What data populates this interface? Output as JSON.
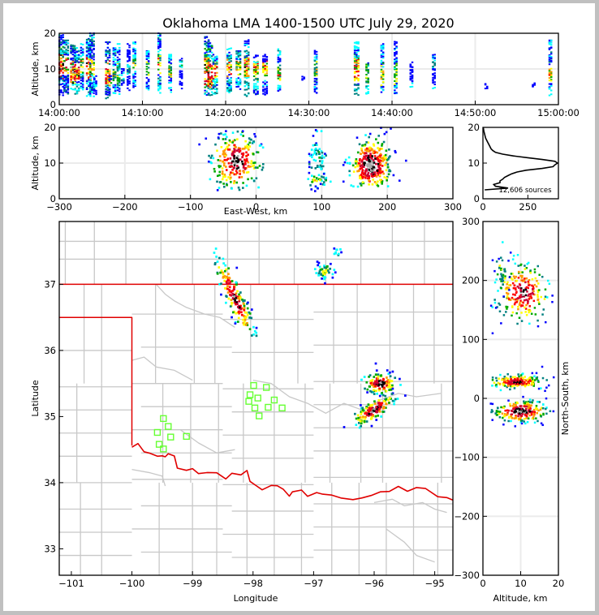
{
  "figure": {
    "title": "Oklahoma LMA 1400-1500 UTC July 29, 2020",
    "source_count_label": "12,606 sources"
  },
  "colors": {
    "county_lines": "#c8c8c8",
    "state_border": "#e00000",
    "station_marker": "#66ff33",
    "grid": "#ebebeb",
    "density_scale": [
      "#0000ff",
      "#00ffff",
      "#008080",
      "#00aa00",
      "#ffff00",
      "#ff9900",
      "#ff0000",
      "#cc0033",
      "#000000",
      "#aaaaaa"
    ]
  },
  "chart_data": [
    {
      "id": "time-height",
      "type": "heatmap",
      "title": "",
      "xlabel": "",
      "ylabel": "Altitude, km",
      "xlim": [
        "14:00:00",
        "15:00:00"
      ],
      "xlim_min": [
        0,
        60
      ],
      "ylim": [
        0,
        20
      ],
      "xticks": [
        "14:00:00",
        "14:10:00",
        "14:20:00",
        "14:30:00",
        "14:40:00",
        "14:50:00",
        "15:00:00"
      ],
      "xtick_minutes": [
        0,
        10,
        20,
        30,
        40,
        50,
        60
      ],
      "yticks": [
        0,
        10,
        20
      ],
      "grid": true,
      "columns": [
        {
          "t": 0.1,
          "zmin": 3,
          "zmax": 19.5,
          "core": [
            8,
            14
          ],
          "intensity": 0.9
        },
        {
          "t": 0.7,
          "zmin": 3,
          "zmax": 18,
          "core": [
            8,
            13
          ],
          "intensity": 0.85
        },
        {
          "t": 1.5,
          "zmin": 3,
          "zmax": 17,
          "core": [
            6,
            12
          ],
          "intensity": 0.9
        },
        {
          "t": 2.0,
          "zmin": 3,
          "zmax": 16,
          "core": [
            7,
            12
          ],
          "intensity": 0.9
        },
        {
          "t": 2.7,
          "zmin": 4,
          "zmax": 17,
          "core": [
            8,
            13
          ],
          "intensity": 0.6
        },
        {
          "t": 3.4,
          "zmin": 3,
          "zmax": 19,
          "core": [
            7,
            13
          ],
          "intensity": 0.85
        },
        {
          "t": 3.8,
          "zmin": 3,
          "zmax": 20,
          "core": [
            8,
            12
          ],
          "intensity": 0.8
        },
        {
          "t": 4.3,
          "zmin": 3,
          "zmax": 8,
          "core": [
            4,
            6
          ],
          "intensity": 0.3
        },
        {
          "t": 5.7,
          "zmin": 2,
          "zmax": 17.5,
          "core": [
            6,
            12
          ],
          "intensity": 0.8
        },
        {
          "t": 6.1,
          "zmin": 6,
          "zmax": 8,
          "core": [
            6,
            7
          ],
          "intensity": 0.5
        },
        {
          "t": 6.6,
          "zmin": 3,
          "zmax": 16,
          "core": [
            6,
            10
          ],
          "intensity": 0.6
        },
        {
          "t": 7.1,
          "zmin": 3,
          "zmax": 17,
          "core": [
            6,
            12
          ],
          "intensity": 0.4
        },
        {
          "t": 7.6,
          "zmin": 6,
          "zmax": 10,
          "core": [
            7,
            9
          ],
          "intensity": 0.25
        },
        {
          "t": 8.3,
          "zmin": 4,
          "zmax": 17,
          "core": [
            9,
            12
          ],
          "intensity": 0.3
        },
        {
          "t": 9.0,
          "zmin": 5,
          "zmax": 18,
          "core": [
            10,
            13
          ],
          "intensity": 0.5
        },
        {
          "t": 10.6,
          "zmin": 4,
          "zmax": 15,
          "core": [
            8,
            12
          ],
          "intensity": 0.5
        },
        {
          "t": 12.0,
          "zmin": 3,
          "zmax": 20,
          "core": [
            8,
            14
          ],
          "intensity": 0.6
        },
        {
          "t": 13.3,
          "zmin": 3,
          "zmax": 14,
          "core": [
            8,
            12
          ],
          "intensity": 0.55
        },
        {
          "t": 14.6,
          "zmin": 5,
          "zmax": 13,
          "core": [
            10,
            12
          ],
          "intensity": 0.3
        },
        {
          "t": 17.6,
          "zmin": 3,
          "zmax": 19,
          "core": [
            6,
            13
          ],
          "intensity": 0.95
        },
        {
          "t": 18.0,
          "zmin": 3,
          "zmax": 18,
          "core": [
            5,
            12
          ],
          "intensity": 0.9
        },
        {
          "t": 18.6,
          "zmin": 3,
          "zmax": 14,
          "core": [
            7,
            12
          ],
          "intensity": 0.7
        },
        {
          "t": 20.3,
          "zmin": 3,
          "zmax": 16,
          "core": [
            8,
            12
          ],
          "intensity": 0.75
        },
        {
          "t": 21.4,
          "zmin": 3,
          "zmax": 15,
          "core": [
            7,
            12
          ],
          "intensity": 0.75
        },
        {
          "t": 22.4,
          "zmin": 3,
          "zmax": 18.5,
          "core": [
            7,
            13
          ],
          "intensity": 0.85
        },
        {
          "t": 23.5,
          "zmin": 3,
          "zmax": 14,
          "core": [
            7,
            12
          ],
          "intensity": 0.7
        },
        {
          "t": 24.6,
          "zmin": 3,
          "zmax": 14,
          "core": [
            7,
            12
          ],
          "intensity": 0.7
        },
        {
          "t": 26.4,
          "zmin": 3,
          "zmax": 16,
          "core": [
            6,
            11
          ],
          "intensity": 0.6
        },
        {
          "t": 29.3,
          "zmin": 7,
          "zmax": 8,
          "core": [
            7,
            8
          ],
          "intensity": 0.1
        },
        {
          "t": 30.8,
          "zmin": 3,
          "zmax": 16,
          "core": [
            7,
            12
          ],
          "intensity": 0.55
        },
        {
          "t": 35.6,
          "zmin": 3,
          "zmax": 17.5,
          "core": [
            6,
            13
          ],
          "intensity": 0.75
        },
        {
          "t": 37.0,
          "zmin": 3,
          "zmax": 12.5,
          "core": [
            5,
            11
          ],
          "intensity": 0.55
        },
        {
          "t": 38.8,
          "zmin": 3,
          "zmax": 17,
          "core": [
            5,
            11
          ],
          "intensity": 0.6
        },
        {
          "t": 40.4,
          "zmin": 3,
          "zmax": 18,
          "core": [
            6,
            11
          ],
          "intensity": 0.5
        },
        {
          "t": 42.3,
          "zmin": 5,
          "zmax": 12.5,
          "core": [
            5,
            6
          ],
          "intensity": 0.25
        },
        {
          "t": 45.0,
          "zmin": 5,
          "zmax": 14,
          "core": [
            10,
            13
          ],
          "intensity": 0.35
        },
        {
          "t": 51.3,
          "zmin": 5,
          "zmax": 6,
          "core": [
            5,
            6
          ],
          "intensity": 0.05
        },
        {
          "t": 57.0,
          "zmin": 5,
          "zmax": 6,
          "core": [
            5,
            6
          ],
          "intensity": 0.05
        },
        {
          "t": 59.0,
          "zmin": 3,
          "zmax": 18,
          "core": [
            6,
            11
          ],
          "intensity": 0.6
        }
      ]
    },
    {
      "id": "ew-height",
      "type": "heatmap",
      "xlabel": "East-West, km",
      "ylabel": "Altitude, km",
      "xlim": [
        -300,
        300
      ],
      "ylim": [
        0,
        20
      ],
      "xticks": [
        -300,
        -200,
        -100,
        0,
        100,
        200,
        300
      ],
      "yticks": [
        0,
        10,
        20
      ],
      "grid": true,
      "clusters": [
        {
          "x": -30,
          "z": 10.5,
          "sx": 18,
          "sz": 4,
          "n": 260,
          "peak": 0.9
        },
        {
          "x": 95,
          "z": 11,
          "sx": 8,
          "sz": 4.5,
          "n": 70,
          "peak": 0.3
        },
        {
          "x": 92,
          "z": 5,
          "sx": 10,
          "sz": 0.8,
          "n": 25,
          "peak": 0.5
        },
        {
          "x": 175,
          "z": 9.5,
          "sx": 15,
          "sz": 3.5,
          "n": 320,
          "peak": 1.0
        }
      ]
    },
    {
      "id": "altitude-histogram",
      "type": "line",
      "xlabel": "",
      "ylabel": "",
      "xlim": [
        0,
        420
      ],
      "ylim": [
        0,
        20
      ],
      "xticks": [
        0,
        250
      ],
      "yticks": [
        0,
        10,
        20
      ],
      "annotation": "12,606 sources",
      "altitude_km": [
        2.5,
        3.0,
        3.5,
        4.0,
        4.5,
        5.0,
        5.5,
        6.0,
        6.5,
        7.0,
        7.5,
        8.0,
        8.5,
        9.0,
        9.5,
        10.0,
        10.5,
        11.0,
        11.5,
        12.0,
        12.5,
        13.0,
        13.5,
        14.0,
        15.0,
        16.0,
        17.0,
        18.0,
        19.0,
        20.0
      ],
      "counts": [
        10,
        140,
        70,
        60,
        95,
        95,
        110,
        120,
        140,
        160,
        190,
        240,
        330,
        390,
        400,
        415,
        400,
        330,
        250,
        170,
        110,
        70,
        55,
        45,
        35,
        25,
        15,
        10,
        5,
        2
      ]
    },
    {
      "id": "plan-view",
      "type": "scatter",
      "xlabel": "Longitude",
      "ylabel": "Latitude",
      "xlim": [
        -101.2,
        -94.7
      ],
      "ylim": [
        32.6,
        37.95
      ],
      "xticks": [
        -101,
        -100,
        -99,
        -98,
        -97,
        -96,
        -95
      ],
      "yticks": [
        33,
        34,
        35,
        36,
        37
      ],
      "grid": false,
      "clusters": [
        {
          "lon": -98.3,
          "lat": 36.8,
          "slon": 0.15,
          "slat": 0.22,
          "n": 170,
          "peak": 0.85,
          "tilt": -0.9
        },
        {
          "lon": -96.82,
          "lat": 37.2,
          "slon": 0.08,
          "slat": 0.06,
          "n": 45,
          "peak": 0.45,
          "tilt": 0.0
        },
        {
          "lon": -96.6,
          "lat": 37.47,
          "slon": 0.05,
          "slat": 0.04,
          "n": 10,
          "peak": 0.2,
          "tilt": 0.0
        },
        {
          "lon": -95.9,
          "lat": 35.5,
          "slon": 0.13,
          "slat": 0.08,
          "n": 120,
          "peak": 0.9,
          "tilt": 0.0
        },
        {
          "lon": -96.0,
          "lat": 35.1,
          "slon": 0.16,
          "slat": 0.09,
          "n": 150,
          "peak": 0.95,
          "tilt": 0.7
        }
      ],
      "stations": [
        {
          "lon": -99.48,
          "lat": 34.97
        },
        {
          "lon": -99.4,
          "lat": 34.85
        },
        {
          "lon": -99.58,
          "lat": 34.76
        },
        {
          "lon": -99.36,
          "lat": 34.69
        },
        {
          "lon": -99.1,
          "lat": 34.7
        },
        {
          "lon": -99.55,
          "lat": 34.58
        },
        {
          "lon": -99.48,
          "lat": 34.51
        },
        {
          "lon": -97.99,
          "lat": 35.47
        },
        {
          "lon": -97.78,
          "lat": 35.44
        },
        {
          "lon": -98.05,
          "lat": 35.33
        },
        {
          "lon": -97.92,
          "lat": 35.28
        },
        {
          "lon": -98.07,
          "lat": 35.23
        },
        {
          "lon": -97.65,
          "lat": 35.25
        },
        {
          "lon": -97.97,
          "lat": 35.13
        },
        {
          "lon": -97.75,
          "lat": 35.14
        },
        {
          "lon": -97.52,
          "lat": 35.13
        },
        {
          "lon": -97.9,
          "lat": 35.01
        }
      ]
    },
    {
      "id": "ns-height",
      "type": "heatmap",
      "xlabel": "Altitude, km",
      "ylabel": "North-South, km",
      "xlim": [
        0,
        20
      ],
      "ylim": [
        -300,
        300
      ],
      "xticks": [
        0,
        10,
        20
      ],
      "yticks": [
        -300,
        -200,
        -100,
        0,
        100,
        200,
        300
      ],
      "grid": true,
      "clusters": [
        {
          "z": 10.5,
          "y": 180,
          "sz": 3.5,
          "sy": 25,
          "n": 240,
          "peak": 0.85
        },
        {
          "z": 5,
          "y": 220,
          "sz": 1,
          "sy": 20,
          "n": 30,
          "peak": 0.4
        },
        {
          "z": 9,
          "y": 28,
          "sz": 3.5,
          "sy": 6,
          "n": 180,
          "peak": 0.85
        },
        {
          "z": 10,
          "y": -22,
          "sz": 3.5,
          "sy": 9,
          "n": 220,
          "peak": 0.95
        }
      ]
    }
  ]
}
